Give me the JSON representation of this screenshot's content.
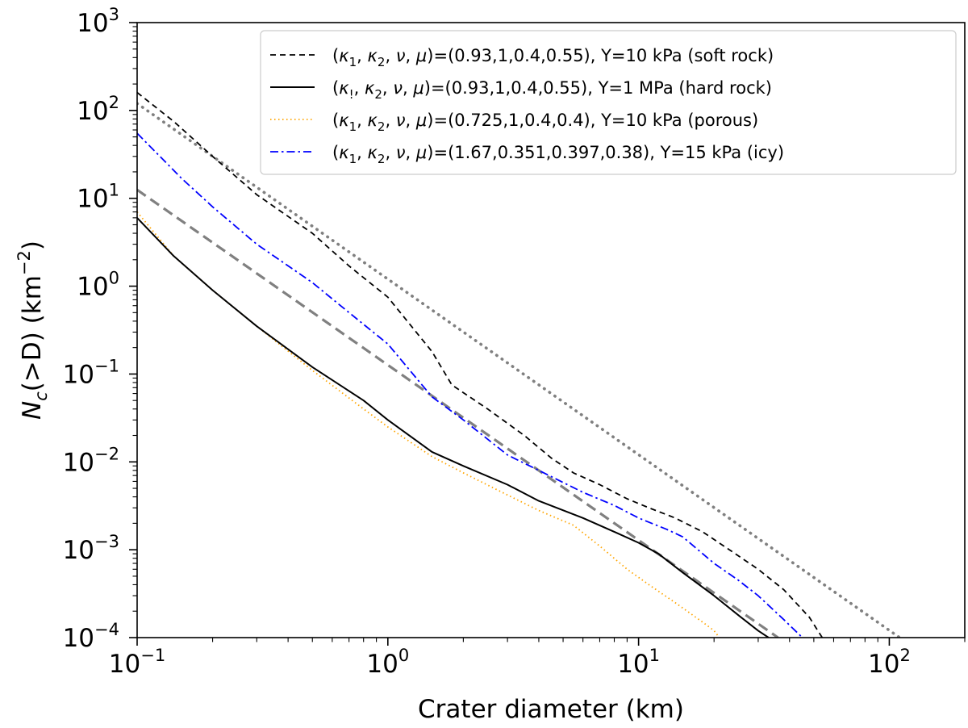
{
  "chart_data": {
    "type": "line",
    "xscale": "log",
    "yscale": "log",
    "xlim": [
      0.1,
      200
    ],
    "ylim": [
      0.0001,
      1000
    ],
    "xlabel": "Crater diameter (km)",
    "ylabel": {
      "prefix": "N",
      "sub": "c",
      "mid": "(>D) (km",
      "sup": "−2",
      "suffix": ")"
    },
    "x_ticks": [
      {
        "value": 0.1,
        "base": "10",
        "exp": "−1"
      },
      {
        "value": 1,
        "base": "10",
        "exp": "0"
      },
      {
        "value": 10,
        "base": "10",
        "exp": "1"
      },
      {
        "value": 100,
        "base": "10",
        "exp": "2"
      }
    ],
    "y_ticks": [
      {
        "value": 0.0001,
        "base": "10",
        "exp": "−4"
      },
      {
        "value": 0.001,
        "base": "10",
        "exp": "−3"
      },
      {
        "value": 0.01,
        "base": "10",
        "exp": "−2"
      },
      {
        "value": 0.1,
        "base": "10",
        "exp": "−1"
      },
      {
        "value": 1,
        "base": "10",
        "exp": "0"
      },
      {
        "value": 10,
        "base": "10",
        "exp": "1"
      },
      {
        "value": 100,
        "base": "10",
        "exp": "2"
      },
      {
        "value": 1000,
        "base": "10",
        "exp": "3"
      }
    ],
    "legend_position": "top-right",
    "series": [
      {
        "name": "soft-rock",
        "label": {
          "k1": "κ",
          "k1sub": "1",
          "params": "=(0.93,1,0.4,0.55), Y=10 kPa (soft rock)"
        },
        "color": "#000000",
        "style": "dashed",
        "in_legend": true,
        "x": [
          0.1,
          0.14,
          0.2,
          0.3,
          0.5,
          0.7,
          1.0,
          1.5,
          1.8,
          2.5,
          3.5,
          4.5,
          5.5,
          7,
          9,
          11,
          14,
          18,
          23,
          30,
          38,
          48,
          54
        ],
        "y": [
          160,
          75,
          30,
          11,
          4.0,
          1.7,
          0.75,
          0.18,
          0.075,
          0.04,
          0.02,
          0.011,
          0.0075,
          0.0055,
          0.0038,
          0.003,
          0.0023,
          0.0016,
          0.001,
          0.0006,
          0.00035,
          0.00017,
          0.0001
        ]
      },
      {
        "name": "hard-rock",
        "label": {
          "k1": "κ",
          "k1sub": "!",
          "params": "=(0.93,1,0.4,0.55), Y=1 MPa (hard rock)"
        },
        "color": "#000000",
        "style": "solid",
        "in_legend": true,
        "x": [
          0.1,
          0.14,
          0.2,
          0.3,
          0.5,
          0.8,
          1.0,
          1.5,
          2.0,
          3.0,
          4.0,
          6.0,
          8.0,
          10,
          12,
          15,
          20,
          25,
          30,
          33
        ],
        "y": [
          6.0,
          2.2,
          0.9,
          0.35,
          0.12,
          0.05,
          0.03,
          0.013,
          0.009,
          0.0055,
          0.0036,
          0.0023,
          0.0016,
          0.0012,
          0.0009,
          0.00055,
          0.0003,
          0.00018,
          0.00012,
          0.0001
        ]
      },
      {
        "name": "porous",
        "label": {
          "k1": "κ",
          "k1sub": "1",
          "params": "=(0.725,1,0.4,0.4), Y=10 kPa (porous)"
        },
        "color": "#ffa500",
        "style": "dotted",
        "in_legend": true,
        "x": [
          0.1,
          0.14,
          0.2,
          0.3,
          0.5,
          0.8,
          1.0,
          1.5,
          2.0,
          3.0,
          4.0,
          5.5,
          7.0,
          9.0,
          11,
          14,
          18,
          20,
          21
        ],
        "y": [
          7.0,
          2.2,
          0.9,
          0.35,
          0.11,
          0.04,
          0.025,
          0.0115,
          0.0075,
          0.0042,
          0.0028,
          0.0019,
          0.0011,
          0.0006,
          0.0004,
          0.00025,
          0.00015,
          0.00012,
          0.0001
        ]
      },
      {
        "name": "icy",
        "label": {
          "k1": "κ",
          "k1sub": "1",
          "params": "=(1.67,0.351,0.397,0.38), Y=15 kPa (icy)"
        },
        "color": "#0000ff",
        "style": "dashdot",
        "in_legend": true,
        "x": [
          0.1,
          0.15,
          0.2,
          0.3,
          0.5,
          0.7,
          1.0,
          1.5,
          2.0,
          3.0,
          4.0,
          6.0,
          8.0,
          10,
          13,
          15,
          20,
          25,
          30,
          38,
          45
        ],
        "y": [
          55,
          17,
          8,
          3.0,
          1.1,
          0.5,
          0.22,
          0.055,
          0.03,
          0.012,
          0.008,
          0.0045,
          0.0032,
          0.0023,
          0.0017,
          0.0014,
          0.0007,
          0.00045,
          0.0003,
          0.00016,
          0.0001
        ]
      },
      {
        "name": "reference-dashed",
        "color": "#808080",
        "style": "dashed-thick",
        "in_legend": false,
        "x": [
          0.1,
          36
        ],
        "y": [
          12.5,
          0.0001
        ]
      },
      {
        "name": "reference-dotted",
        "color": "#808080",
        "style": "dotted-thick",
        "in_legend": false,
        "x": [
          0.1,
          110
        ],
        "y": [
          120,
          0.0001
        ]
      }
    ]
  }
}
